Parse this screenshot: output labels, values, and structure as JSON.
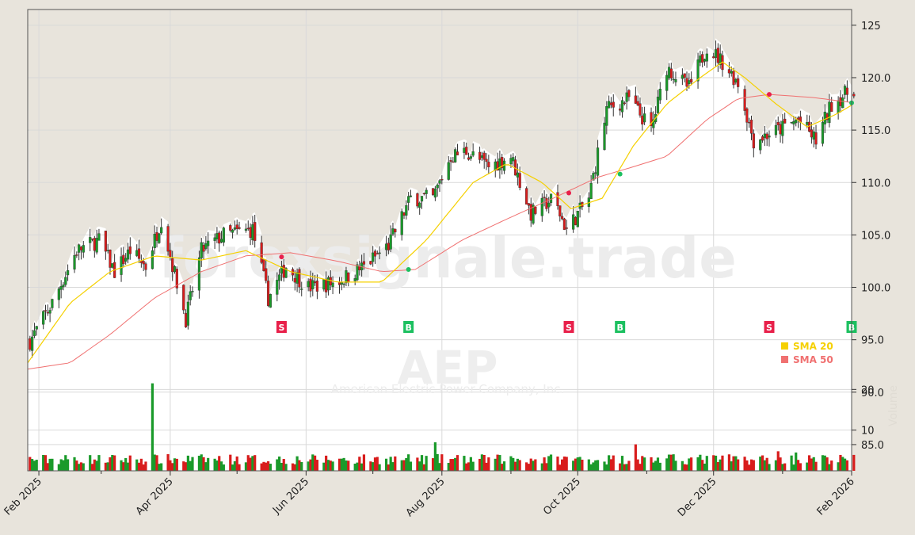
{
  "chart_data": {
    "type": "candlestick",
    "symbol": "AEP",
    "company": "American Electric Power Company, Inc.",
    "watermark": "forexsignale.trade",
    "price_axis": {
      "range": [
        82.5,
        126.5
      ],
      "ticks": [
        "85.0",
        "90.0",
        "95.0",
        "100.0",
        "105.0",
        "110.0",
        "115.0",
        "120.0",
        "125"
      ]
    },
    "volume_axis": {
      "ticks": [
        "10",
        "20"
      ],
      "tick_values": [
        10,
        20
      ],
      "max": 30
    },
    "volume_label": "Volume",
    "x_axis": {
      "start": "2025-01-27",
      "end": "2026-02-01",
      "ticks": [
        {
          "date": "2025-02-01",
          "label": "Feb 2025"
        },
        {
          "date": "2025-04-01",
          "label": "Apr 2025"
        },
        {
          "date": "2025-06-01",
          "label": "Jun 2025"
        },
        {
          "date": "2025-08-01",
          "label": "Aug 2025"
        },
        {
          "date": "2025-10-01",
          "label": "Oct 2025"
        },
        {
          "date": "2025-12-01",
          "label": "Dec 2025"
        },
        {
          "date": "2026-02-01",
          "label": "Feb 2026"
        }
      ]
    },
    "legend": {
      "position": "right-middle",
      "items": [
        {
          "label": "SMA 20",
          "color": "#f5d000"
        },
        {
          "label": "SMA 50",
          "color": "#f07070"
        }
      ]
    },
    "price_path": [
      [
        "2025-01-27",
        94.5
      ],
      [
        "2025-02-07",
        98.5
      ],
      [
        "2025-02-18",
        103.5
      ],
      [
        "2025-02-28",
        104.5
      ],
      [
        "2025-03-07",
        101.5
      ],
      [
        "2025-03-14",
        103.5
      ],
      [
        "2025-03-21",
        102.0
      ],
      [
        "2025-03-28",
        106.5
      ],
      [
        "2025-04-08",
        97.0
      ],
      [
        "2025-04-15",
        103.5
      ],
      [
        "2025-04-25",
        105.0
      ],
      [
        "2025-05-08",
        105.5
      ],
      [
        "2025-05-15",
        99.0
      ],
      [
        "2025-05-23",
        102.0
      ],
      [
        "2025-06-02",
        100.0
      ],
      [
        "2025-06-15",
        100.5
      ],
      [
        "2025-06-27",
        102.0
      ],
      [
        "2025-07-08",
        104.0
      ],
      [
        "2025-07-18",
        108.5
      ],
      [
        "2025-07-28",
        108.5
      ],
      [
        "2025-08-05",
        112.5
      ],
      [
        "2025-08-12",
        113.0
      ],
      [
        "2025-08-22",
        111.5
      ],
      [
        "2025-09-01",
        112.5
      ],
      [
        "2025-09-10",
        107.0
      ],
      [
        "2025-09-20",
        108.5
      ],
      [
        "2025-09-26",
        105.5
      ],
      [
        "2025-10-06",
        108.5
      ],
      [
        "2025-10-14",
        117.0
      ],
      [
        "2025-10-24",
        118.0
      ],
      [
        "2025-11-03",
        115.0
      ],
      [
        "2025-11-10",
        121.0
      ],
      [
        "2025-11-20",
        119.0
      ],
      [
        "2025-11-28",
        123.0
      ],
      [
        "2025-12-05",
        121.5
      ],
      [
        "2025-12-12",
        119.5
      ],
      [
        "2025-12-19",
        114.0
      ],
      [
        "2025-12-30",
        115.0
      ],
      [
        "2026-01-08",
        116.0
      ],
      [
        "2026-01-16",
        114.0
      ],
      [
        "2026-01-23",
        117.5
      ],
      [
        "2026-02-02",
        119.0
      ]
    ],
    "sma20": [
      [
        "2025-01-27",
        92.8
      ],
      [
        "2025-02-15",
        98.5
      ],
      [
        "2025-03-05",
        101.5
      ],
      [
        "2025-03-25",
        103.0
      ],
      [
        "2025-04-15",
        102.6
      ],
      [
        "2025-05-05",
        103.5
      ],
      [
        "2025-05-25",
        101.5
      ],
      [
        "2025-06-15",
        100.5
      ],
      [
        "2025-07-05",
        100.5
      ],
      [
        "2025-07-25",
        104.5
      ],
      [
        "2025-08-15",
        110.0
      ],
      [
        "2025-08-30",
        111.8
      ],
      [
        "2025-09-15",
        110.0
      ],
      [
        "2025-09-28",
        107.5
      ],
      [
        "2025-10-12",
        108.5
      ],
      [
        "2025-10-26",
        113.5
      ],
      [
        "2025-11-10",
        117.5
      ],
      [
        "2025-11-25",
        120.0
      ],
      [
        "2025-12-05",
        121.5
      ],
      [
        "2025-12-15",
        120.0
      ],
      [
        "2025-12-29",
        117.5
      ],
      [
        "2026-01-12",
        115.3
      ],
      [
        "2026-01-25",
        116.5
      ],
      [
        "2026-02-02",
        117.5
      ]
    ],
    "sma50": [
      [
        "2025-01-27",
        92.2
      ],
      [
        "2025-02-15",
        92.8
      ],
      [
        "2025-03-05",
        95.5
      ],
      [
        "2025-03-25",
        99.0
      ],
      [
        "2025-04-15",
        101.5
      ],
      [
        "2025-05-05",
        103.0
      ],
      [
        "2025-05-25",
        103.3
      ],
      [
        "2025-06-15",
        102.5
      ],
      [
        "2025-07-05",
        101.5
      ],
      [
        "2025-07-20",
        101.7
      ],
      [
        "2025-08-10",
        104.5
      ],
      [
        "2025-08-30",
        106.5
      ],
      [
        "2025-09-20",
        108.5
      ],
      [
        "2025-10-10",
        110.5
      ],
      [
        "2025-10-26",
        111.5
      ],
      [
        "2025-11-10",
        112.5
      ],
      [
        "2025-11-28",
        116.0
      ],
      [
        "2025-12-12",
        118.0
      ],
      [
        "2025-12-26",
        118.4
      ],
      [
        "2026-01-15",
        118.1
      ],
      [
        "2026-02-02",
        117.6
      ]
    ],
    "signals": [
      {
        "date": "2025-05-21",
        "type": "S",
        "price": 102.9
      },
      {
        "date": "2025-07-17",
        "type": "B",
        "price": 101.7
      },
      {
        "date": "2025-09-27",
        "type": "S",
        "price": 109.0
      },
      {
        "date": "2025-10-20",
        "type": "B",
        "price": 110.8
      },
      {
        "date": "2025-12-26",
        "type": "S",
        "price": 118.4
      },
      {
        "date": "2026-02-01",
        "type": "B",
        "price": 117.6
      }
    ],
    "volume_peaks": [
      {
        "date": "2025-03-24",
        "value": 21.5
      },
      {
        "date": "2025-07-29",
        "value": 7.0
      },
      {
        "date": "2025-10-27",
        "value": 6.5
      },
      {
        "date": "2025-12-30",
        "value": 4.8
      },
      {
        "date": "2026-01-07",
        "value": 4.5
      }
    ],
    "colors": {
      "up": "#1a9a2a",
      "down": "#d81c1c",
      "sma20": "#f5d000",
      "sma50": "#f07070",
      "sell": "#e8204a",
      "buy": "#1cc060",
      "plot_bg": "#ffffff",
      "outer_bg": "#e8e4dc"
    }
  }
}
